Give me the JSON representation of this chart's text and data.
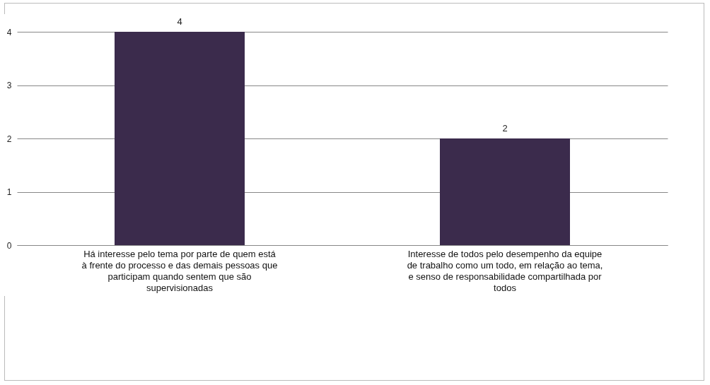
{
  "chart_data": {
    "type": "bar",
    "categories": [
      "Há interesse pelo tema por parte de quem está à frente do processo e das demais pessoas que participam quando sentem que são supervisionadas",
      "Interesse de todos pelo desempenho da equipe de trabalho como um todo, em relação ao tema, e senso de responsabilidade compartilhada por todos"
    ],
    "values": [
      4,
      2
    ],
    "color": "#3b2b4c",
    "ylim": [
      0,
      4
    ],
    "yticks": [
      0,
      1,
      2,
      3,
      4
    ],
    "grid": "y",
    "data_labels": true
  }
}
